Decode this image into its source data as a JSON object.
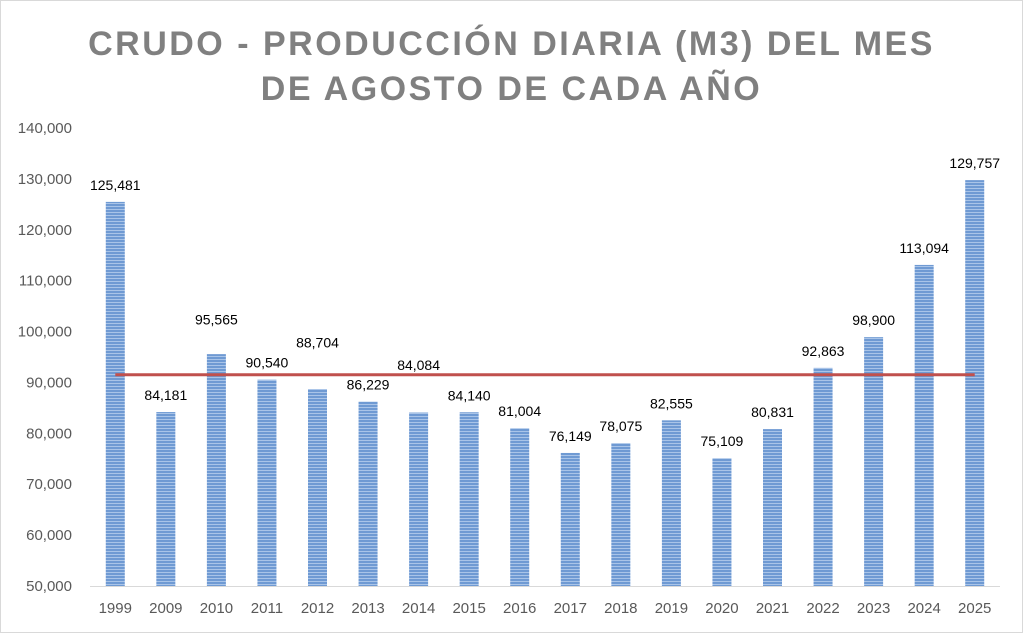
{
  "chart_data": {
    "type": "bar",
    "title_lines": [
      "CRUDO - PRODUCCIÓN DIARIA (M3) DEL MES",
      "DE AGOSTO DE CADA AÑO"
    ],
    "categories": [
      "1999",
      "2009",
      "2010",
      "2011",
      "2012",
      "2013",
      "2014",
      "2015",
      "2016",
      "2017",
      "2018",
      "2019",
      "2020",
      "2021",
      "2022",
      "2023",
      "2024",
      "2025"
    ],
    "values": [
      125481,
      84181,
      95565,
      90540,
      88704,
      86229,
      84084,
      84140,
      81004,
      76149,
      78075,
      82555,
      75109,
      80831,
      92863,
      98900,
      113094,
      129757
    ],
    "value_labels": [
      "125,481",
      "84,181",
      "95,565",
      "90,540",
      "88,704",
      "86,229",
      "84,084",
      "84,140",
      "81,004",
      "76,149",
      "78,075",
      "82,555",
      "75,109",
      "80,831",
      "92,863",
      "98,900",
      "113,094",
      "129,757"
    ],
    "ylim": [
      50000,
      140000
    ],
    "yticks": [
      50000,
      60000,
      70000,
      80000,
      90000,
      100000,
      110000,
      120000,
      130000,
      140000
    ],
    "ytick_labels": [
      "50,000",
      "60,000",
      "70,000",
      "80,000",
      "90,000",
      "100,000",
      "110,000",
      "120,000",
      "130,000",
      "140,000"
    ],
    "reference_line": {
      "value": 91500,
      "color": "#c0504d"
    },
    "label_offsets": [
      0,
      0,
      3.5,
      0,
      5.8,
      0,
      6.0,
      0,
      0,
      0,
      0,
      0,
      0,
      0,
      0,
      0,
      0,
      0
    ],
    "bar_color": "#6f9ad3",
    "bar_stripe_color": "#a9c4e8",
    "xlabel": "",
    "ylabel": "",
    "grid": false,
    "legend": "none"
  }
}
